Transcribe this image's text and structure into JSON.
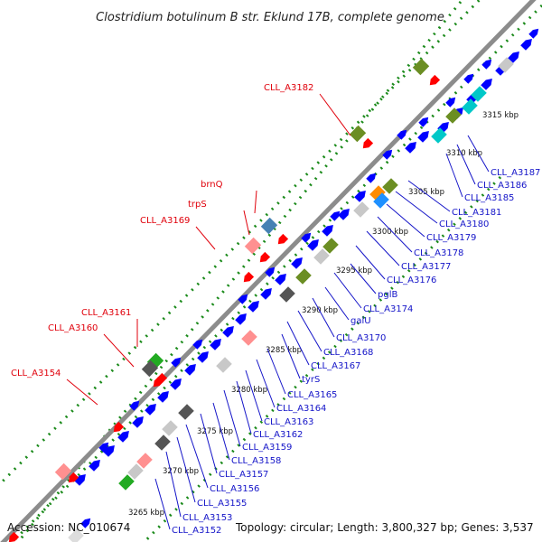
{
  "title": "Clostridium botulinum B str. Eklund 17B, complete genome",
  "footer": {
    "accession": "Accession: NC_010674",
    "summary": "Topology: circular; Length: 3,800,327 bp; Genes: 3,537"
  },
  "colors": {
    "cds_forward": "#0000ff",
    "cds_reverse": "#ff0000",
    "backbone": "#8c8c8c",
    "dots": "#1a8a1a",
    "label_red": "#e0000b",
    "label_blue": "#1414c8"
  },
  "ticks": [
    "3265 kbp",
    "3270 kbp",
    "3275 kbp",
    "3280 kbp",
    "3285 kbp",
    "3290 kbp",
    "3295 kbp",
    "3300 kbp",
    "3305 kbp",
    "3310 kbp",
    "3315 kbp"
  ],
  "labels_forward": [
    "CLL_A3187",
    "CLL_A3186",
    "CLL_A3185",
    "CLL_A3181",
    "CLL_A3180",
    "CLL_A3179",
    "CLL_A3178",
    "CLL_A3177",
    "CLL_A3176",
    "pglB",
    "CLL_A3174",
    "galU",
    "CLL_A3170",
    "CLL_A3168",
    "CLL_A3167",
    "tyrS",
    "CLL_A3165",
    "CLL_A3164",
    "CLL_A3163",
    "CLL_A3162",
    "CLL_A3159",
    "CLL_A3158",
    "CLL_A3157",
    "CLL_A3156",
    "CLL_A3155",
    "CLL_A3153",
    "CLL_A3152"
  ],
  "labels_reverse": [
    "CLL_A3182",
    "brnQ",
    "trpS",
    "CLL_A3169",
    "CLL_A3161",
    "CLL_A3160",
    "CLL_A3154"
  ]
}
